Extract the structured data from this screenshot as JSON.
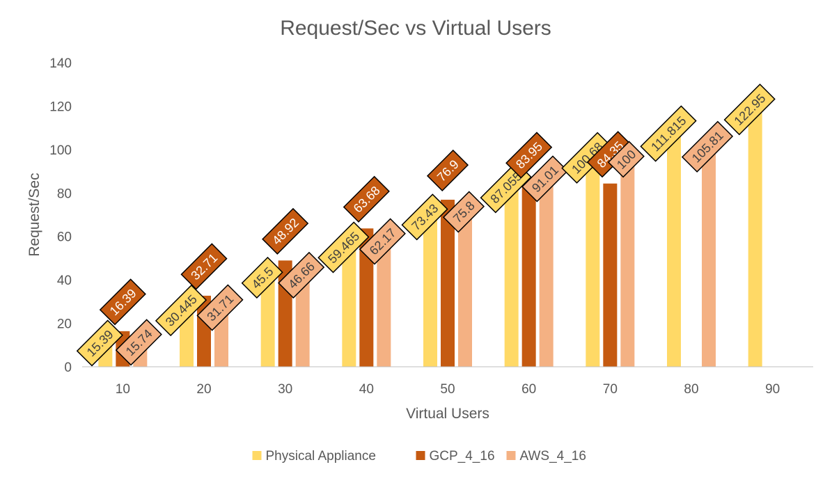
{
  "chart_data": {
    "type": "bar",
    "title": "Request/Sec vs Virtual Users",
    "xlabel": "Virtual Users",
    "ylabel": "Request/Sec",
    "ylim": [
      0,
      140
    ],
    "ytick_step": 20,
    "yticks": [
      "0",
      "20",
      "40",
      "60",
      "80",
      "100",
      "120",
      "140"
    ],
    "grid": false,
    "legend_position": "bottom",
    "categories": [
      "10",
      "20",
      "30",
      "40",
      "50",
      "60",
      "70",
      "80",
      "90"
    ],
    "series": [
      {
        "name": "Physical Appliance",
        "color": "#FFD966",
        "label_text_color": "#404040",
        "values": [
          15.39,
          30.445,
          45.5,
          59.465,
          73.43,
          87.055,
          100.68,
          111.815,
          122.95
        ],
        "labels": [
          "15.39",
          "30.445",
          "45.5",
          "59.465",
          "73.43",
          "87.055",
          "100.68",
          "111.815",
          "122.95"
        ]
      },
      {
        "name": "GCP_4_16",
        "color": "#C55A11",
        "label_text_color": "#ffffff",
        "values": [
          16.39,
          32.71,
          48.92,
          63.68,
          76.9,
          83.95,
          84.35,
          null,
          null
        ],
        "labels": [
          "16.39",
          "32.71",
          "48.92",
          "63.68",
          "76.9",
          "83.95",
          "84.35",
          null,
          null
        ]
      },
      {
        "name": "AWS_4_16",
        "color": "#F4B183",
        "label_text_color": "#404040",
        "values": [
          15.74,
          31.71,
          46.66,
          62.17,
          75.8,
          91.01,
          100,
          105.81,
          null
        ],
        "labels": [
          "15.74",
          "31.71",
          "46.66",
          "62.17",
          "75.8",
          "91.01",
          "100",
          "105.81",
          null
        ]
      }
    ]
  }
}
